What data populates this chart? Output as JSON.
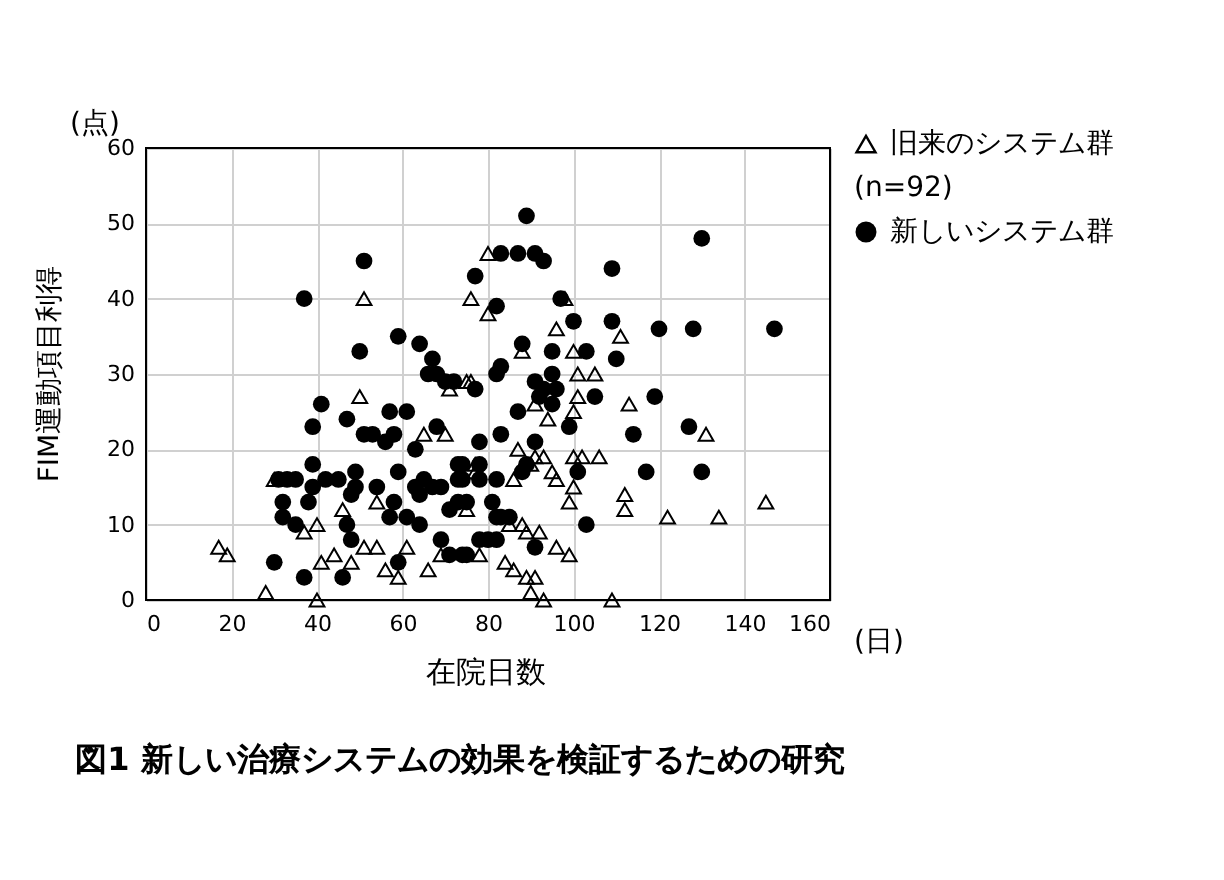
{
  "chart_data": {
    "type": "scatter",
    "title": "図1  新しい治療システムの効果を検証するための研究",
    "xlabel": "在院日数",
    "ylabel": "FIM運動項目利得",
    "annotations": [
      "(点)",
      "(日)",
      "(n=92)"
    ],
    "xlim": [
      0,
      160
    ],
    "xticks": [
      0,
      20,
      40,
      60,
      80,
      100,
      120,
      140,
      160
    ],
    "ylim": [
      0,
      60
    ],
    "yticks": [
      0,
      10,
      20,
      30,
      40,
      50,
      60
    ],
    "grid": true,
    "legend": "right",
    "series": [
      {
        "name": "旧来のシステム群",
        "marker": "triangle",
        "color": "#000000",
        "x": [
          51,
          71,
          76,
          50,
          65,
          70,
          30,
          77,
          37,
          40,
          46,
          54,
          51,
          54,
          61,
          69,
          44,
          41,
          48,
          56,
          59,
          66,
          17,
          19,
          28,
          40,
          80,
          76,
          80,
          98,
          111,
          96,
          88,
          100,
          75,
          101,
          105,
          101,
          113,
          100,
          91,
          94,
          131,
          87,
          91,
          93,
          100,
          102,
          106,
          90,
          95,
          96,
          77,
          86,
          100,
          99,
          112,
          112,
          122,
          134,
          145,
          75,
          85,
          88,
          92,
          89,
          96,
          99,
          78,
          84,
          86,
          89,
          91,
          90,
          93,
          109
        ],
        "values": [
          40,
          28,
          29,
          27,
          22,
          22,
          16,
          17,
          9,
          10,
          12,
          13,
          7,
          7,
          7,
          6,
          6,
          5,
          5,
          4,
          3,
          4,
          7,
          6,
          1,
          0,
          46,
          40,
          38,
          40,
          35,
          36,
          33,
          33,
          29,
          30,
          30,
          27,
          26,
          25,
          26,
          24,
          22,
          20,
          19,
          19,
          19,
          19,
          19,
          18,
          17,
          16,
          18,
          16,
          15,
          13,
          14,
          12,
          11,
          11,
          13,
          12,
          10,
          10,
          9,
          9,
          7,
          6,
          6,
          5,
          4,
          3,
          3,
          1,
          0,
          0
        ]
      },
      {
        "name": "新しいシステム群",
        "marker": "circle",
        "color": "#000000",
        "x": [
          51,
          37,
          59,
          64,
          50,
          67,
          66,
          68,
          70,
          72,
          41,
          39,
          47,
          57,
          61,
          51,
          53,
          56,
          58,
          63,
          68,
          39,
          59,
          31,
          33,
          35,
          39,
          42,
          45,
          49,
          49,
          48,
          54,
          63,
          65,
          67,
          69,
          64,
          74,
          74,
          32,
          38,
          32,
          35,
          58,
          57,
          61,
          64,
          71,
          75,
          47,
          48,
          69,
          71,
          75,
          59,
          30,
          37,
          46,
          89,
          83,
          87,
          91,
          93,
          77,
          82,
          97,
          109,
          130,
          100,
          109,
          120,
          128,
          147,
          88,
          95,
          103,
          110,
          82,
          83,
          77,
          91,
          95,
          92,
          93,
          96,
          95,
          105,
          119,
          87,
          127,
          114,
          99,
          83,
          78,
          91,
          88,
          89,
          101,
          117,
          130,
          73,
          78,
          82,
          78,
          73,
          73,
          81,
          82,
          83,
          85,
          103,
          78,
          80,
          82,
          91,
          74
        ],
        "values": [
          45,
          40,
          35,
          34,
          33,
          32,
          30,
          30,
          29,
          29,
          26,
          23,
          24,
          25,
          25,
          22,
          22,
          21,
          22,
          20,
          23,
          18,
          17,
          16,
          16,
          16,
          15,
          16,
          16,
          17,
          15,
          14,
          15,
          15,
          16,
          15,
          15,
          14,
          18,
          16,
          13,
          13,
          11,
          10,
          13,
          11,
          11,
          10,
          12,
          13,
          10,
          8,
          8,
          6,
          6,
          5,
          5,
          3,
          3,
          51,
          46,
          46,
          46,
          45,
          43,
          39,
          40,
          44,
          48,
          37,
          37,
          36,
          36,
          36,
          34,
          33,
          33,
          32,
          30,
          31,
          28,
          29,
          30,
          27,
          28,
          28,
          26,
          27,
          27,
          25,
          23,
          22,
          23,
          22,
          21,
          21,
          17,
          18,
          17,
          17,
          17,
          18,
          18,
          16,
          16,
          16,
          13,
          13,
          11,
          11,
          11,
          10,
          8,
          8,
          8,
          7,
          6
        ]
      }
    ]
  }
}
